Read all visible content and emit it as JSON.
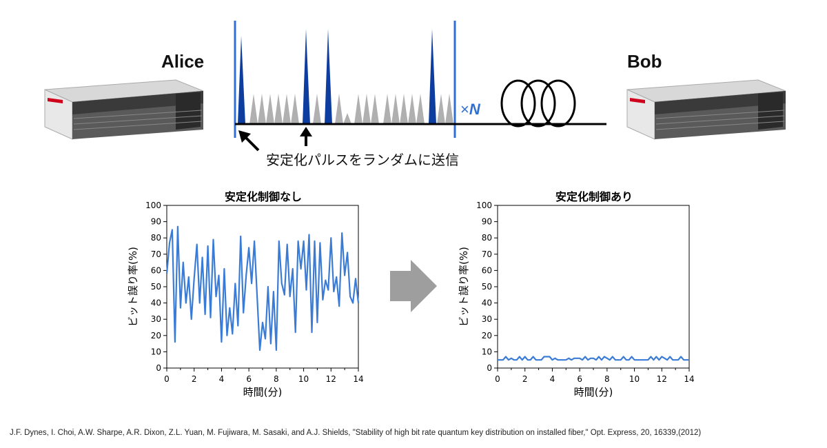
{
  "alice": {
    "label": "Alice"
  },
  "bob": {
    "label": "Bob"
  },
  "pulse_diagram": {
    "repeat_prefix": "×",
    "repeat_symbol": "N",
    "caption": "安定化パルスをランダムに送信",
    "colors": {
      "stabilization_pulse": "#0d3d9e",
      "signal_pulse": "#b0b0b0",
      "frame": "#2f6fd4"
    }
  },
  "chart_data": [
    {
      "type": "line",
      "title": "安定化制御なし",
      "xlabel": "時間(分)",
      "ylabel": "ビット誤り率(%)",
      "xlim": [
        0,
        14
      ],
      "ylim": [
        0,
        100
      ],
      "xticks": [
        0,
        2,
        4,
        6,
        8,
        10,
        12,
        14
      ],
      "yticks": [
        0,
        10,
        20,
        30,
        40,
        50,
        60,
        70,
        80,
        90,
        100
      ],
      "color": "#3a7bd5",
      "x": [
        0.0,
        0.2,
        0.4,
        0.6,
        0.8,
        1.0,
        1.2,
        1.4,
        1.6,
        1.8,
        2.0,
        2.2,
        2.4,
        2.6,
        2.8,
        3.0,
        3.2,
        3.4,
        3.6,
        3.8,
        4.0,
        4.2,
        4.4,
        4.6,
        4.8,
        5.0,
        5.2,
        5.4,
        5.6,
        5.8,
        6.0,
        6.2,
        6.4,
        6.6,
        6.8,
        7.0,
        7.2,
        7.4,
        7.6,
        7.8,
        8.0,
        8.2,
        8.4,
        8.6,
        8.8,
        9.0,
        9.2,
        9.4,
        9.6,
        9.8,
        10.0,
        10.2,
        10.4,
        10.6,
        10.8,
        11.0,
        11.2,
        11.4,
        11.6,
        11.8,
        12.0,
        12.2,
        12.4,
        12.6,
        12.8,
        13.0,
        13.2,
        13.4,
        13.6,
        13.8,
        14.0
      ],
      "values": [
        58,
        77,
        85,
        16,
        87,
        37,
        65,
        40,
        56,
        30,
        55,
        76,
        40,
        68,
        33,
        75,
        31,
        79,
        44,
        57,
        16,
        61,
        20,
        37,
        21,
        52,
        26,
        81,
        34,
        57,
        74,
        52,
        78,
        44,
        11,
        28,
        18,
        50,
        15,
        47,
        11,
        78,
        52,
        45,
        76,
        44,
        61,
        22,
        78,
        61,
        78,
        48,
        82,
        22,
        78,
        28,
        77,
        42,
        54,
        48,
        80,
        47,
        56,
        38,
        83,
        57,
        71,
        44,
        40,
        55,
        40
      ]
    },
    {
      "type": "line",
      "title": "安定化制御あり",
      "xlabel": "時間(分)",
      "ylabel": "ビット誤り率(%)",
      "xlim": [
        0,
        14
      ],
      "ylim": [
        0,
        100
      ],
      "xticks": [
        0,
        2,
        4,
        6,
        8,
        10,
        12,
        14
      ],
      "yticks": [
        0,
        10,
        20,
        30,
        40,
        50,
        60,
        70,
        80,
        90,
        100
      ],
      "color": "#3a7bd5",
      "x": [
        0.0,
        0.2,
        0.4,
        0.6,
        0.8,
        1.0,
        1.2,
        1.4,
        1.6,
        1.8,
        2.0,
        2.2,
        2.4,
        2.6,
        2.8,
        3.0,
        3.2,
        3.4,
        3.6,
        3.8,
        4.0,
        4.2,
        4.4,
        4.6,
        4.8,
        5.0,
        5.2,
        5.4,
        5.6,
        5.8,
        6.0,
        6.2,
        6.4,
        6.6,
        6.8,
        7.0,
        7.2,
        7.4,
        7.6,
        7.8,
        8.0,
        8.2,
        8.4,
        8.6,
        8.8,
        9.0,
        9.2,
        9.4,
        9.6,
        9.8,
        10.0,
        10.2,
        10.4,
        10.6,
        10.8,
        11.0,
        11.2,
        11.4,
        11.6,
        11.8,
        12.0,
        12.2,
        12.4,
        12.6,
        12.8,
        13.0,
        13.2,
        13.4,
        13.6,
        13.8,
        14.0
      ],
      "values": [
        5,
        5,
        5,
        7,
        5,
        6,
        5,
        5,
        7,
        5,
        7,
        5,
        5,
        7,
        5,
        5,
        5,
        7,
        7,
        7,
        5,
        6,
        5,
        5,
        5,
        5,
        6,
        5,
        6,
        6,
        6,
        5,
        7,
        5,
        6,
        6,
        5,
        7,
        5,
        7,
        6,
        5,
        7,
        5,
        5,
        5,
        7,
        5,
        5,
        7,
        5,
        5,
        5,
        5,
        5,
        5,
        7,
        5,
        7,
        5,
        7,
        6,
        5,
        7,
        5,
        5,
        5,
        7,
        5,
        5,
        5
      ]
    }
  ],
  "citation": "J.F. Dynes, I. Choi, A.W. Sharpe, A.R. Dixon, Z.L. Yuan, M. Fujiwara, M. Sasaki, and A.J. Shields, \"Stability of high bit rate  quantum key distribution on installed fiber,\" Opt. Express, 20, 16339,(2012)"
}
